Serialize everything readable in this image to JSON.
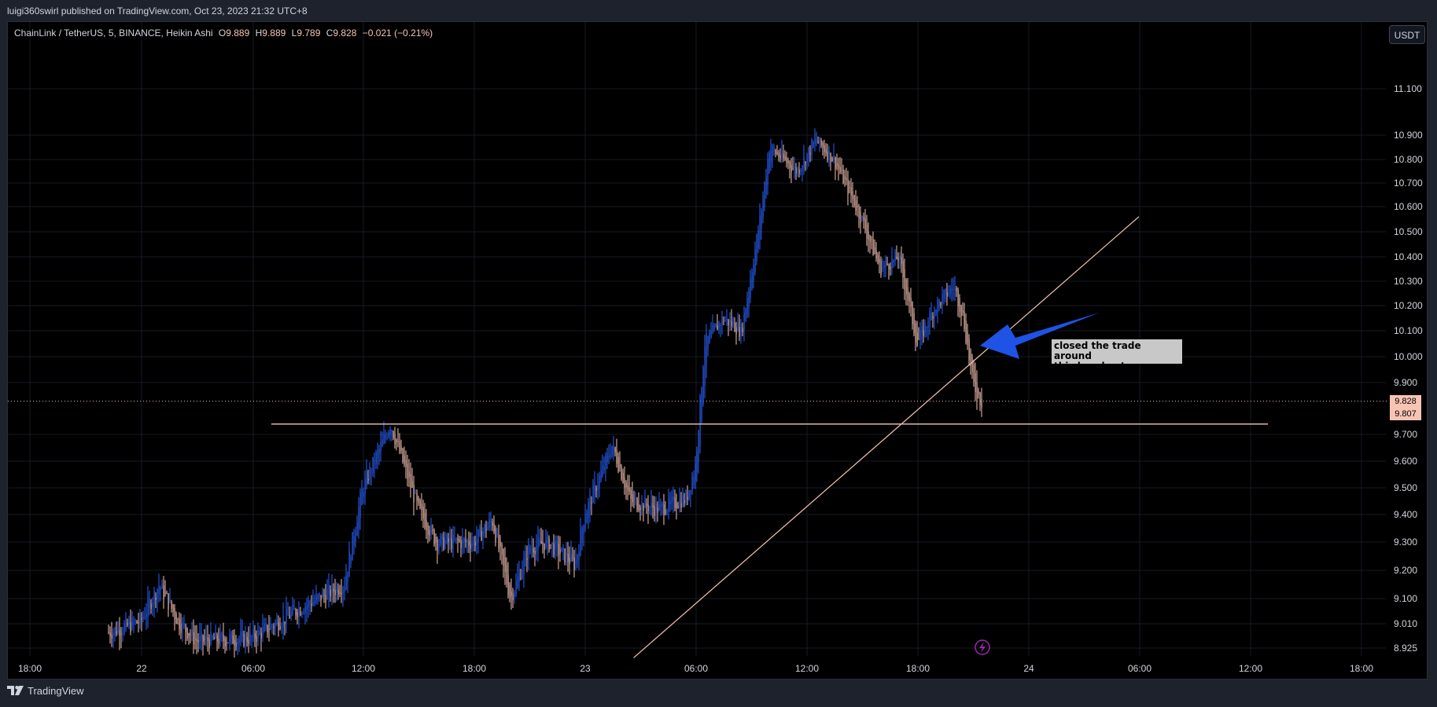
{
  "header": {
    "publish_line": "luigi360swirl published on TradingView.com, Oct 23, 2023 21:32 UTC+8"
  },
  "legend": {
    "symbol": "ChainLink / TetherUS, 5, BINANCE, Heikin Ashi",
    "o_label": "O",
    "o_value": "9.889",
    "h_label": "H",
    "h_value": "9.889",
    "l_label": "L",
    "l_value": "9.789",
    "c_label": "C",
    "c_value": "9.828",
    "change": "−0.021 (−0.21%)"
  },
  "currency_button": "USDT",
  "annotation": {
    "line1": "closed the trade around",
    "line2": "this breakout area"
  },
  "price_badges": {
    "last": "9.828",
    "level": "9.807"
  },
  "footer": {
    "brand": "TradingView"
  },
  "colors": {
    "up": "#2962ff",
    "down": "#f7c4b4",
    "trendline": "#f7c4b4",
    "arrow": "#1e53e5",
    "last_price_badge": "#f7c4b4",
    "background": "#000000"
  },
  "icons": {
    "alert": "lightning-icon",
    "logo": "tradingview-logo-icon"
  },
  "chart_data": {
    "type": "candlestick",
    "style": "Heikin Ashi",
    "interval": "5",
    "y_ticks": [
      "11.100",
      "10.900",
      "10.800",
      "10.700",
      "10.600",
      "10.500",
      "10.400",
      "10.300",
      "10.200",
      "10.100",
      "10.000",
      "9.900",
      "9.700",
      "9.600",
      "9.500",
      "9.400",
      "9.300",
      "9.200",
      "9.100",
      "9.010",
      "8.925"
    ],
    "x_ticks": [
      "18:00",
      "22",
      "06:00",
      "12:00",
      "18:00",
      "23",
      "06:00",
      "12:00",
      "18:00",
      "24",
      "06:00",
      "12:00",
      "18:00"
    ],
    "ylim": [
      8.925,
      11.1
    ],
    "price_path": [
      [
        "21 18:00",
        8.88
      ],
      [
        "22 00:00",
        9.02
      ],
      [
        "22 01:00",
        9.15
      ],
      [
        "22 02:00",
        9.02
      ],
      [
        "22 03:00",
        8.95
      ],
      [
        "22 06:00",
        8.96
      ],
      [
        "22 09:00",
        9.08
      ],
      [
        "22 11:00",
        9.15
      ],
      [
        "22 12:00",
        9.5
      ],
      [
        "22 13:30",
        9.74
      ],
      [
        "22 15:00",
        9.42
      ],
      [
        "22 16:00",
        9.3
      ],
      [
        "22 18:00",
        9.3
      ],
      [
        "22 19:00",
        9.38
      ],
      [
        "22 20:00",
        9.1
      ],
      [
        "22 21:00",
        9.28
      ],
      [
        "22 22:00",
        9.3
      ],
      [
        "22 23:30",
        9.22
      ],
      [
        "23 00:00",
        9.4
      ],
      [
        "23 01:30",
        9.66
      ],
      [
        "23 02:30",
        9.45
      ],
      [
        "23 04:00",
        9.42
      ],
      [
        "23 05:30",
        9.46
      ],
      [
        "23 06:00",
        9.58
      ],
      [
        "23 06:30",
        10.05
      ],
      [
        "23 07:30",
        10.15
      ],
      [
        "23 08:30",
        10.1
      ],
      [
        "23 09:30",
        10.55
      ],
      [
        "23 10:00",
        10.85
      ],
      [
        "23 11:30",
        10.75
      ],
      [
        "23 12:30",
        10.88
      ],
      [
        "23 13:30",
        10.8
      ],
      [
        "23 15:00",
        10.55
      ],
      [
        "23 16:00",
        10.35
      ],
      [
        "23 17:00",
        10.4
      ],
      [
        "23 18:00",
        10.05
      ],
      [
        "23 19:00",
        10.2
      ],
      [
        "23 20:00",
        10.28
      ],
      [
        "23 20:30",
        10.15
      ],
      [
        "23 21:00",
        9.9
      ],
      [
        "23 21:30",
        9.82
      ]
    ],
    "drawings": {
      "horizontal_level": 9.74,
      "last_price": 9.828,
      "ascending_trendline": [
        [
          "22 19:00",
          8.88
        ],
        [
          "24 06:00",
          10.56
        ]
      ]
    }
  }
}
